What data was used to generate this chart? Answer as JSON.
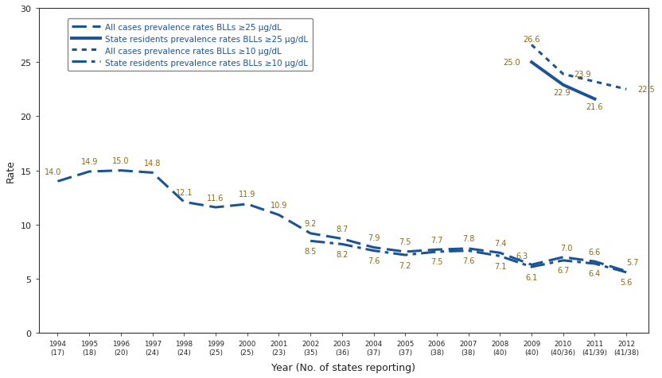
{
  "years": [
    1994,
    1995,
    1996,
    1997,
    1998,
    1999,
    2000,
    2001,
    2002,
    2003,
    2004,
    2005,
    2006,
    2007,
    2008,
    2009,
    2010,
    2011,
    2012
  ],
  "xtick_labels": [
    "1994\n(17)",
    "1995\n(18)",
    "1996\n(20)",
    "1997\n(24)",
    "1998\n(24)",
    "1999\n(25)",
    "2000\n(25)",
    "2001\n(23)",
    "2002\n(35)",
    "2003\n(36)",
    "2004\n(37)",
    "2005\n(37)",
    "2006\n(38)",
    "2007\n(38)",
    "2008\n(40)",
    "2009\n(40)",
    "2010\n(40/36)",
    "2011\n(41/39)",
    "2012\n(41/38)"
  ],
  "all_cases_25_years": [
    1994,
    1995,
    1996,
    1997,
    1998,
    1999,
    2000,
    2001,
    2002,
    2003,
    2004,
    2005,
    2006,
    2007,
    2008,
    2009,
    2010,
    2011,
    2012
  ],
  "all_cases_25_vals": [
    14.0,
    14.9,
    15.0,
    14.8,
    12.1,
    11.6,
    11.9,
    10.9,
    9.2,
    8.7,
    7.9,
    7.5,
    7.7,
    7.8,
    7.4,
    6.3,
    7.0,
    6.6,
    5.7
  ],
  "all_cases_25_label": "All cases prevalence rates BLLs ≥25 μg/dL",
  "state_res_25_years": [
    2009,
    2010,
    2011
  ],
  "state_res_25_vals": [
    25.0,
    22.9,
    21.6
  ],
  "state_res_25_label": "State residents prevalence rates BLLs ≥25 μg/dL",
  "all_cases_10_years": [
    2009,
    2010,
    2012
  ],
  "all_cases_10_vals": [
    26.6,
    23.9,
    22.5
  ],
  "all_cases_10_label": "All cases prevalence rates BLLs ≥10 μg/dL",
  "state_res_10_years": [
    2002,
    2003,
    2004,
    2005,
    2006,
    2007,
    2008,
    2009,
    2010,
    2011,
    2012
  ],
  "state_res_10_vals": [
    8.5,
    8.2,
    7.6,
    7.2,
    7.5,
    7.6,
    7.1,
    6.1,
    6.7,
    6.4,
    5.6
  ],
  "state_res_10_label": "State residents prevalence rates BLLs ≥10 μg/dL",
  "ylim": [
    0,
    30
  ],
  "yticks": [
    0,
    5,
    10,
    15,
    20,
    25,
    30
  ],
  "ylabel": "Rate",
  "xlabel": "Year (No. of states reporting)",
  "line_color": "#1A5494",
  "text_color": "#1A5494",
  "ann_color": "#8B6914",
  "background_color": "#FFFFFF",
  "ann_all25": {
    "years": [
      1994,
      1995,
      1996,
      1997,
      1998,
      1999,
      2000,
      2001,
      2002,
      2003,
      2004,
      2005,
      2006,
      2007,
      2008,
      2009,
      2010,
      2011,
      2012
    ],
    "values": [
      14.0,
      14.9,
      15.0,
      14.8,
      12.1,
      11.6,
      11.9,
      10.9,
      9.2,
      8.7,
      7.9,
      7.5,
      7.7,
      7.8,
      7.4,
      6.3,
      7.0,
      6.6,
      5.7
    ],
    "ox": [
      -0.15,
      0.0,
      0.0,
      0.0,
      0.0,
      0.0,
      0.0,
      0.0,
      0.0,
      0.0,
      0.0,
      0.0,
      0.0,
      0.0,
      0.0,
      -0.3,
      0.1,
      0.0,
      0.2
    ],
    "oy": [
      0.55,
      0.55,
      0.55,
      0.55,
      0.55,
      0.55,
      0.55,
      0.55,
      0.55,
      0.55,
      0.55,
      0.55,
      0.55,
      0.55,
      0.55,
      0.5,
      0.5,
      0.5,
      0.5
    ]
  },
  "ann_sr10": {
    "years": [
      2002,
      2003,
      2004,
      2005,
      2006,
      2007,
      2008,
      2009,
      2010,
      2011,
      2012
    ],
    "values": [
      8.5,
      8.2,
      7.6,
      7.2,
      7.5,
      7.6,
      7.1,
      6.1,
      6.7,
      6.4,
      5.6
    ],
    "ox": [
      0.0,
      0.0,
      0.0,
      0.0,
      0.0,
      0.0,
      0.0,
      0.0,
      0.0,
      0.0,
      0.0
    ],
    "oy": [
      -0.55,
      -0.55,
      -0.55,
      -0.55,
      -0.55,
      -0.55,
      -0.55,
      -0.55,
      -0.55,
      -0.55,
      -0.55
    ]
  },
  "ann_sr25": [
    {
      "year": 2009,
      "val": 25.0,
      "ox": -0.35,
      "oy": 0.0,
      "ha": "right"
    },
    {
      "year": 2010,
      "val": 22.9,
      "ox": -0.05,
      "oy": -0.7,
      "ha": "center"
    },
    {
      "year": 2011,
      "val": 21.6,
      "ox": 0.0,
      "oy": -0.7,
      "ha": "center"
    }
  ],
  "ann_ac10": [
    {
      "year": 2009,
      "val": 26.6,
      "ox": 0.0,
      "oy": 0.55,
      "ha": "center"
    },
    {
      "year": 2010,
      "val": 23.9,
      "ox": 0.35,
      "oy": 0.0,
      "ha": "left"
    },
    {
      "year": 2012,
      "val": 22.5,
      "ox": 0.35,
      "oy": 0.0,
      "ha": "left"
    }
  ]
}
